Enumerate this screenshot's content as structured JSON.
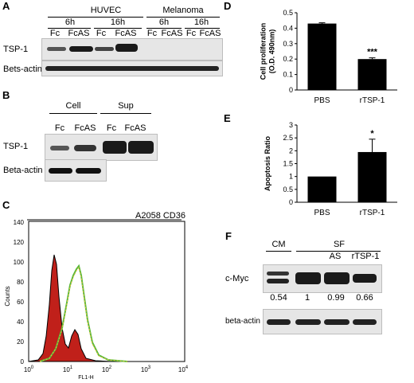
{
  "panelA": {
    "label": "A",
    "groups": [
      "HUVEC",
      "Melanoma"
    ],
    "times": [
      "6h",
      "16h",
      "6h",
      "16h"
    ],
    "lanes": [
      "Fc",
      "FcAS",
      "Fc",
      "FcAS",
      "Fc",
      "FcAS",
      "Fc",
      "FcAS"
    ],
    "rows": [
      "TSP-1",
      "Bets-actin"
    ]
  },
  "panelB": {
    "label": "B",
    "groups": [
      "Cell",
      "Sup"
    ],
    "lanes": [
      "Fc",
      "FcAS",
      "Fc",
      "FcAS"
    ],
    "rows": [
      "TSP-1",
      "Beta-actin"
    ]
  },
  "panelC": {
    "label": "C",
    "title": "A2058 CD36",
    "xlabel": "FL1-H",
    "ylabel": "Counts",
    "yticks": [
      "0",
      "20",
      "40",
      "60",
      "80",
      "100",
      "120",
      "140"
    ],
    "xticks_base": [
      "10",
      "10",
      "10",
      "10",
      "10"
    ],
    "xticks_exp": [
      "0",
      "1",
      "2",
      "3",
      "4"
    ]
  },
  "panelD": {
    "label": "D",
    "chart_data": {
      "type": "bar",
      "categories": [
        "PBS",
        "rTSP-1"
      ],
      "values": [
        0.43,
        0.2
      ],
      "errors": [
        0.005,
        0.008
      ],
      "ylabel": "Cell proliferation\n(O.D. 490nm)",
      "ylim": [
        0,
        0.5
      ],
      "yticks": [
        "0",
        "0.1",
        "0.2",
        "0.3",
        "0.4",
        "0.5"
      ],
      "annotations": [
        "",
        "***"
      ],
      "bar_color": "#000000"
    }
  },
  "panelE": {
    "label": "E",
    "chart_data": {
      "type": "bar",
      "categories": [
        "PBS",
        "rTSP-1"
      ],
      "values": [
        1.0,
        1.95
      ],
      "errors": [
        0,
        0.5
      ],
      "ylabel": "Apoptosis Ratio",
      "ylim": [
        0,
        3
      ],
      "yticks": [
        "0",
        "0.5",
        "1",
        "1.5",
        "2",
        "2.5",
        "3"
      ],
      "annotations": [
        "",
        "*"
      ],
      "bar_color": "#000000"
    }
  },
  "panelF": {
    "label": "F",
    "groups": [
      "CM",
      "SF"
    ],
    "lanes": [
      "",
      "",
      "AS",
      "rTSP-1"
    ],
    "rows": [
      "c-Myc",
      "beta-actin"
    ],
    "values": [
      "0.54",
      "1",
      "0.99",
      "0.66"
    ]
  }
}
